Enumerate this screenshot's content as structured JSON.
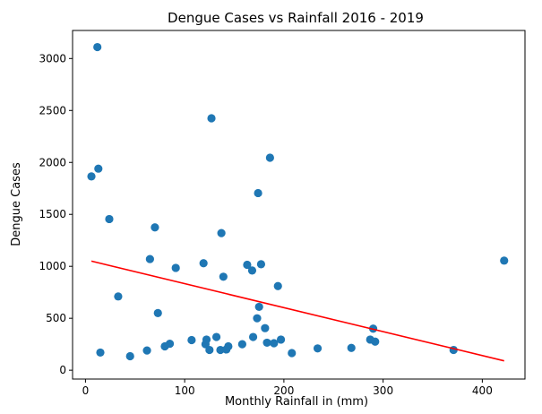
{
  "chart_data": {
    "type": "scatter",
    "title": "Dengue Cases vs Rainfall 2016 - 2019",
    "xlabel": "Monthly Rainfall in (mm)",
    "ylabel": "Dengue Cases",
    "xlim": [
      -13,
      443
    ],
    "ylim": [
      -85,
      3270
    ],
    "xticks": [
      0,
      100,
      200,
      300,
      400
    ],
    "yticks": [
      0,
      500,
      1000,
      1500,
      2000,
      2500,
      3000
    ],
    "grid": false,
    "marker_color": "#1f77b4",
    "trend_color": "#ff0000",
    "points": [
      {
        "x": 6,
        "y": 1865
      },
      {
        "x": 12,
        "y": 3110
      },
      {
        "x": 13,
        "y": 1940
      },
      {
        "x": 15,
        "y": 170
      },
      {
        "x": 24,
        "y": 1455
      },
      {
        "x": 33,
        "y": 710
      },
      {
        "x": 45,
        "y": 135
      },
      {
        "x": 62,
        "y": 190
      },
      {
        "x": 65,
        "y": 1070
      },
      {
        "x": 70,
        "y": 1375
      },
      {
        "x": 73,
        "y": 550
      },
      {
        "x": 80,
        "y": 230
      },
      {
        "x": 85,
        "y": 255
      },
      {
        "x": 91,
        "y": 985
      },
      {
        "x": 107,
        "y": 290
      },
      {
        "x": 119,
        "y": 1030
      },
      {
        "x": 121,
        "y": 250
      },
      {
        "x": 122,
        "y": 295
      },
      {
        "x": 125,
        "y": 195
      },
      {
        "x": 127,
        "y": 2425
      },
      {
        "x": 132,
        "y": 320
      },
      {
        "x": 136,
        "y": 195
      },
      {
        "x": 137,
        "y": 1320
      },
      {
        "x": 139,
        "y": 900
      },
      {
        "x": 142,
        "y": 200
      },
      {
        "x": 144,
        "y": 230
      },
      {
        "x": 158,
        "y": 250
      },
      {
        "x": 163,
        "y": 1015
      },
      {
        "x": 168,
        "y": 960
      },
      {
        "x": 169,
        "y": 320
      },
      {
        "x": 173,
        "y": 500
      },
      {
        "x": 174,
        "y": 1705
      },
      {
        "x": 175,
        "y": 610
      },
      {
        "x": 177,
        "y": 1020
      },
      {
        "x": 181,
        "y": 405
      },
      {
        "x": 183,
        "y": 265
      },
      {
        "x": 186,
        "y": 2045
      },
      {
        "x": 190,
        "y": 260
      },
      {
        "x": 194,
        "y": 810
      },
      {
        "x": 197,
        "y": 295
      },
      {
        "x": 208,
        "y": 165
      },
      {
        "x": 234,
        "y": 210
      },
      {
        "x": 268,
        "y": 215
      },
      {
        "x": 287,
        "y": 295
      },
      {
        "x": 290,
        "y": 400
      },
      {
        "x": 292,
        "y": 275
      },
      {
        "x": 371,
        "y": 195
      },
      {
        "x": 422,
        "y": 1055
      }
    ],
    "trend_line": {
      "x": [
        6,
        422
      ],
      "y": [
        1050,
        90
      ]
    }
  }
}
